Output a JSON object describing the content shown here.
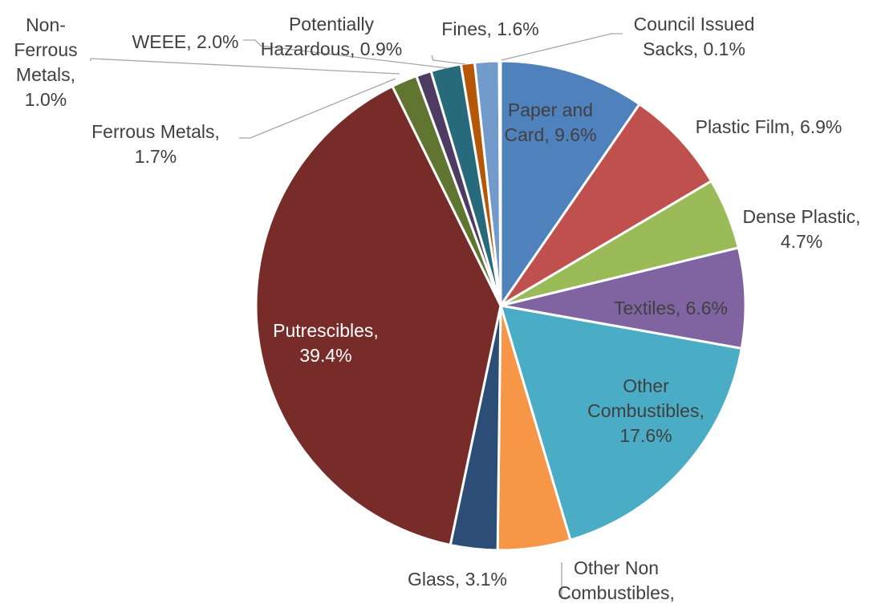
{
  "chart_data": {
    "type": "pie",
    "start_angle_deg": 0,
    "direction": "clockwise",
    "legend": "none",
    "slices": [
      {
        "label": [
          "Paper and",
          "Card, 9.6%"
        ],
        "name": "Paper and Card",
        "value": 9.6,
        "color": "#4f81bd",
        "text_color": "#404040"
      },
      {
        "label": [
          "Plastic Film, 6.9%"
        ],
        "name": "Plastic Film",
        "value": 6.9,
        "color": "#c0504d",
        "text_color": "#404040"
      },
      {
        "label": [
          "Dense Plastic,",
          "4.7%"
        ],
        "name": "Dense Plastic",
        "value": 4.7,
        "color": "#9bbb59",
        "text_color": "#404040"
      },
      {
        "label": [
          "Textiles, 6.6%"
        ],
        "name": "Textiles",
        "value": 6.6,
        "color": "#8064a2",
        "text_color": "#404040"
      },
      {
        "label": [
          "Other",
          "Combustibles,",
          "17.6%"
        ],
        "name": "Other Combustibles",
        "value": 17.6,
        "color": "#4bacc6",
        "text_color": "#404040"
      },
      {
        "label": [
          "Other Non",
          "Combustibles,"
        ],
        "name": "Other Non Combustibles",
        "value": 4.8,
        "color": "#f79646",
        "text_color": "#404040"
      },
      {
        "label": [
          "Glass, 3.1%"
        ],
        "name": "Glass",
        "value": 3.1,
        "color": "#2c4d75",
        "text_color": "#404040"
      },
      {
        "label": [
          "Putrescibles,",
          "39.4%"
        ],
        "name": "Putrescibles",
        "value": 39.4,
        "color": "#772c2a",
        "text_color": "#ffffff"
      },
      {
        "label": [
          "Ferrous Metals,",
          "1.7%"
        ],
        "name": "Ferrous Metals",
        "value": 1.7,
        "color": "#5f7530",
        "text_color": "#404040"
      },
      {
        "label": [
          "Non-",
          "Ferrous",
          "Metals,",
          "1.0%"
        ],
        "name": "Non-Ferrous Metals",
        "value": 1.0,
        "color": "#4d3b62",
        "text_color": "#404040"
      },
      {
        "label": [
          "WEEE, 2.0%"
        ],
        "name": "WEEE",
        "value": 2.0,
        "color": "#276a7c",
        "text_color": "#404040"
      },
      {
        "label": [
          "Potentially",
          "Hazardous, 0.9%"
        ],
        "name": "Potentially Hazardous",
        "value": 0.9,
        "color": "#b65708",
        "text_color": "#404040"
      },
      {
        "label": [
          "Fines, 1.6%"
        ],
        "name": "Fines",
        "value": 1.6,
        "color": "#729aca",
        "text_color": "#404040"
      },
      {
        "label": [
          "Council Issued",
          "Sacks, 0.1%"
        ],
        "name": "Council Issued Sacks",
        "value": 0.1,
        "color": "#4f81bd",
        "text_color": "#404040"
      }
    ]
  }
}
